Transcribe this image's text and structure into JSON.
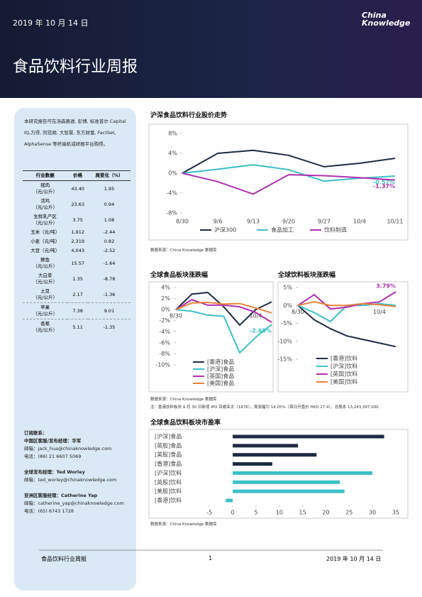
{
  "header": {
    "date": "2019 年 10 月 14 日",
    "logo": [
      "China",
      "Knowledge"
    ],
    "title": "食品饮料行业周报"
  },
  "sidebar": {
    "intro": "本研究报告可在汤森路透, 彭博, 标准普尔 Capital IQ,万得, 同花顺, 大智慧, 东方财富, FactSet, AlphaSense 等终端机或研报平台购得。",
    "table": {
      "columns": [
        "行业数据",
        "价格",
        "周变化（%）"
      ],
      "rows": [
        {
          "name": "猪肉",
          "unit": "（元/公斤）",
          "price": "43.40",
          "change": "1.95"
        },
        {
          "name": "活鸡",
          "unit": "（元/公斤）",
          "price": "23.63",
          "change": "0.94"
        },
        {
          "name": "生鲜乳产区",
          "unit": "（元/公斤）",
          "price": "3.75",
          "change": "1.08"
        },
        {
          "name": "玉米（元/吨）",
          "price": "1,912",
          "change": "-2.44"
        },
        {
          "name": "小麦（元/吨）",
          "price": "2,319",
          "change": "0.82"
        },
        {
          "name": "大豆（元/吨）",
          "price": "4,043",
          "change": "-2.52"
        },
        {
          "name": "鲫鱼",
          "unit": "（元/公斤）",
          "price": "15.57",
          "change": "-1.64"
        },
        {
          "name": "大白菜",
          "unit": "（元/公斤）",
          "price": "1.35",
          "change": "-8.78"
        },
        {
          "name": "土豆",
          "unit": "（元/公斤）",
          "price": "2.17",
          "change": "-1.36"
        },
        {
          "name": "苹果",
          "unit": "（元/公斤）",
          "price": "7.38",
          "change": "9.01"
        },
        {
          "name": "香蕉",
          "unit": "（元/公斤）",
          "price": "5.11",
          "change": "-1.35"
        }
      ]
    },
    "contacts": {
      "heading": "订阅联系：",
      "groups": [
        {
          "title": "中国区客服/发布经理：华军",
          "lines": [
            "邮箱：jack_hua@chinaknowledge.com",
            "电话：(86) 21 6607 5069"
          ]
        },
        {
          "title": "全球发布经理：Ted Worley",
          "lines": [
            "邮箱：ted_worley@chinaknowledge.com"
          ]
        },
        {
          "title": "亚洲区客服经理：Catherine Yap",
          "lines": [
            "邮箱：catherine_yap@chinaknowledge.com",
            "电话：(65) 6743 1728"
          ]
        }
      ]
    }
  },
  "chart_data": [
    {
      "type": "line",
      "title": "沪深食品饮料行业股价走势",
      "categories": [
        "8/30",
        "9/6",
        "9/13",
        "9/20",
        "9/27",
        "10/4",
        "10/11"
      ],
      "ylim": [
        -8,
        8
      ],
      "yticks": [
        {
          "value": -8,
          "label": "-8%"
        },
        {
          "value": -4,
          "label": "-4%"
        },
        {
          "value": 0,
          "label": "0%"
        },
        {
          "value": 4,
          "label": "4%"
        },
        {
          "value": 8,
          "label": "8%"
        }
      ],
      "series": [
        {
          "name": "沪深300",
          "color": "#1f2a44",
          "values": [
            0,
            4,
            4.6,
            3.6,
            1.3,
            2,
            3
          ]
        },
        {
          "name": "食品加工",
          "color": "#3bbfc6",
          "values": [
            0,
            0.8,
            1.7,
            0.7,
            -1.6,
            -1,
            -0.57
          ],
          "value_labels": [
            null,
            null,
            null,
            null,
            null,
            null,
            "-0.57%"
          ]
        },
        {
          "name": "饮料制造",
          "color": "#b030b0",
          "values": [
            0,
            -1.7,
            -4.2,
            -0.3,
            -0.5,
            -0.9,
            -1.37
          ],
          "value_labels": [
            null,
            null,
            null,
            null,
            null,
            null,
            "-1.37%"
          ]
        }
      ]
    },
    {
      "type": "line",
      "title": "全球食品板块涨跌幅",
      "categories": [
        "8/30",
        null,
        null,
        null,
        null,
        "10/4",
        null
      ],
      "ylim": [
        -10,
        4
      ],
      "yticks": [
        {
          "value": -10,
          "label": "-10%"
        },
        {
          "value": -8,
          "label": "-8%"
        },
        {
          "value": -6,
          "label": "-6%"
        },
        {
          "value": -4,
          "label": "-4%"
        },
        {
          "value": -2,
          "label": "-2%"
        },
        {
          "value": 0,
          "label": "0%"
        },
        {
          "value": 2,
          "label": "2%"
        },
        {
          "value": 4,
          "label": "4%"
        }
      ],
      "series": [
        {
          "name": "[香港]食品",
          "color": "#1f2a44",
          "values": [
            0,
            2.8,
            3.1,
            0.5,
            -2.8,
            0,
            1.4
          ]
        },
        {
          "name": "[沪深]食品",
          "color": "#3bbfc6",
          "values": [
            0,
            -0.3,
            -1,
            -1.2,
            -7.8,
            -5,
            -2.69
          ],
          "value_labels": [
            null,
            null,
            null,
            null,
            null,
            null,
            "-2.69%"
          ]
        },
        {
          "name": "[英国]食品",
          "color": "#b030b0",
          "values": [
            0,
            1.8,
            0.8,
            0.8,
            0.5,
            -0.5,
            -2.3
          ]
        },
        {
          "name": "[美国]食品",
          "color": "#e8833a",
          "values": [
            0,
            1.2,
            1.3,
            1,
            1.1,
            0.3,
            -0.6
          ]
        }
      ]
    },
    {
      "type": "line",
      "title": "全球饮料板块涨跌幅",
      "categories": [
        "8/30",
        null,
        null,
        null,
        null,
        "10/4",
        null
      ],
      "ylim": [
        -15,
        5
      ],
      "yticks": [
        {
          "value": -15,
          "label": "-15%"
        },
        {
          "value": -10,
          "label": "-10%"
        },
        {
          "value": -5,
          "label": "-5%"
        },
        {
          "value": 0,
          "label": "0%"
        },
        {
          "value": 5,
          "label": "5%"
        }
      ],
      "series": [
        {
          "name": "[香港]饮料",
          "color": "#1f2a44",
          "values": [
            0,
            -4,
            -6.5,
            -8.5,
            -9.5,
            -10.5,
            -11.5
          ]
        },
        {
          "name": "[沪深]饮料",
          "color": "#3bbfc6",
          "values": [
            0,
            -2,
            -4.5,
            0,
            0,
            0.5,
            0
          ]
        },
        {
          "name": "[英国]饮料",
          "color": "#b030b0",
          "values": [
            0,
            3,
            -1,
            -0.5,
            0.5,
            1,
            3.79
          ],
          "value_labels": [
            null,
            null,
            null,
            null,
            null,
            null,
            "3.79%"
          ]
        },
        {
          "name": "[美国]饮料",
          "color": "#e8833a",
          "values": [
            0,
            1,
            0,
            0,
            0.5,
            0.2,
            -0.3
          ]
        }
      ]
    },
    {
      "type": "hbar",
      "title": "全球食品饮料板块市盈率",
      "categories": [
        "[沪深]食品",
        "[英股]食品",
        "[美股]食品",
        "[香港]食品",
        "[沪深]饮料",
        "[英股]饮料",
        "[美股]饮料",
        "[香港]饮料"
      ],
      "values": [
        32.5,
        14,
        18,
        8.5,
        30,
        23,
        24,
        -1.5
      ],
      "colors": [
        "#1f2a44",
        "#1f2a44",
        "#1f2a44",
        "#1f2a44",
        "#3bbfc6",
        "#3bbfc6",
        "#3bbfc6",
        "#3bbfc6"
      ],
      "xlim": [
        -5,
        35
      ],
      "xticks": [
        -5,
        0,
        5,
        10,
        15,
        20,
        25,
        30,
        35
      ]
    }
  ],
  "sources": [
    "数据来源：China Knowledge 数据库",
    "数据来源：China Knowledge 数据库",
    "数据来源：China Knowledge 数据库"
  ],
  "note": "注：香港饮料板块 9 月 30 日新增 IPO 百威亚太（1876），周涨幅为 14.05%（首日开盘价 HKD 27.4），总股本 13,243,397,000",
  "footer": {
    "left": "食品饮料行业周报",
    "page": "1",
    "right": "2019 年 10 月 14 日"
  }
}
